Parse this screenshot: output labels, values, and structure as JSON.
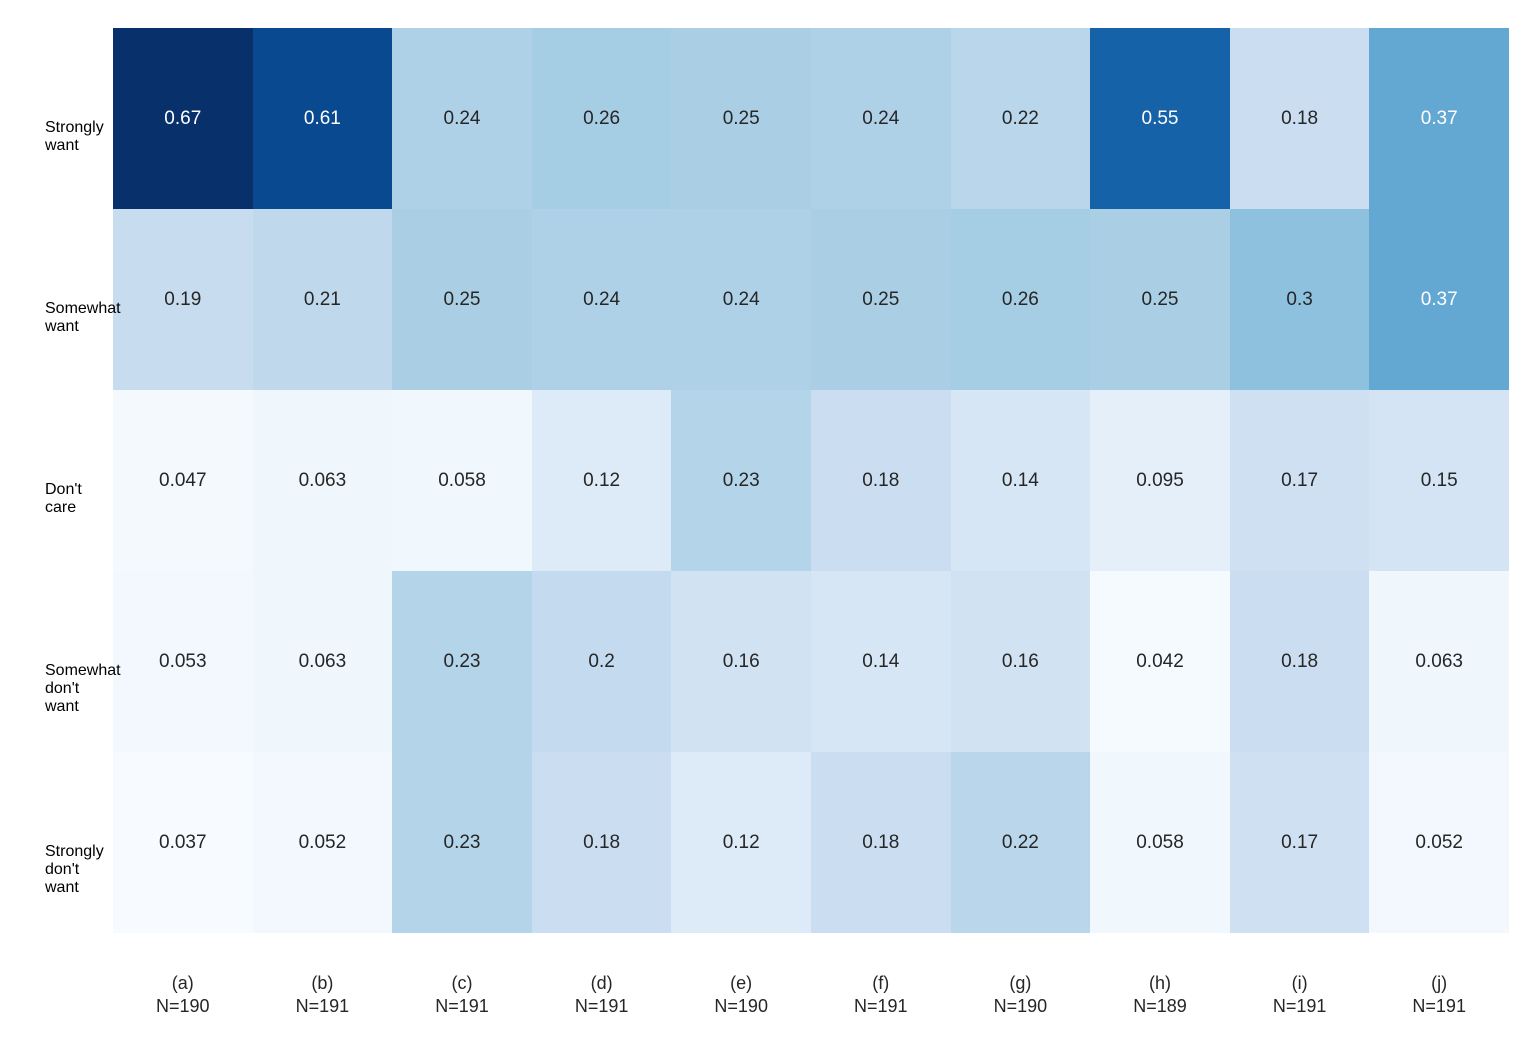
{
  "chart_data": {
    "type": "heatmap",
    "title": "",
    "xlabel": "",
    "ylabel": "",
    "legend": "none",
    "grid": false,
    "color_scale": {
      "colormap": "Blues",
      "vmin": 0.037,
      "vmax": 0.67,
      "min_color": "#f7fbff",
      "max_color": "#08306b"
    },
    "annotation_colors": {
      "dark_text": "#262626",
      "light_text": "#ffffff"
    },
    "row_labels": [
      [
        "Strongly",
        "want"
      ],
      [
        "Somewhat",
        "want"
      ],
      [
        "Don't",
        "care"
      ],
      [
        "Somewhat",
        "don't want"
      ],
      [
        "Strongly",
        "don't want"
      ]
    ],
    "column_labels": [
      [
        "(a)",
        "N=190"
      ],
      [
        "(b)",
        "N=191"
      ],
      [
        "(c)",
        "N=191"
      ],
      [
        "(d)",
        "N=191"
      ],
      [
        "(e)",
        "N=190"
      ],
      [
        "(f)",
        "N=191"
      ],
      [
        "(g)",
        "N=190"
      ],
      [
        "(h)",
        "N=189"
      ],
      [
        "(i)",
        "N=191"
      ],
      [
        "(j)",
        "N=191"
      ]
    ],
    "values": [
      [
        0.67,
        0.61,
        0.24,
        0.26,
        0.25,
        0.24,
        0.22,
        0.55,
        0.18,
        0.37
      ],
      [
        0.19,
        0.21,
        0.25,
        0.24,
        0.24,
        0.25,
        0.26,
        0.25,
        0.3,
        0.37
      ],
      [
        0.047,
        0.063,
        0.058,
        0.12,
        0.23,
        0.18,
        0.14,
        0.095,
        0.17,
        0.15
      ],
      [
        0.053,
        0.063,
        0.23,
        0.2,
        0.16,
        0.14,
        0.16,
        0.042,
        0.18,
        0.063
      ],
      [
        0.037,
        0.052,
        0.23,
        0.18,
        0.12,
        0.18,
        0.22,
        0.058,
        0.17,
        0.052
      ]
    ]
  }
}
